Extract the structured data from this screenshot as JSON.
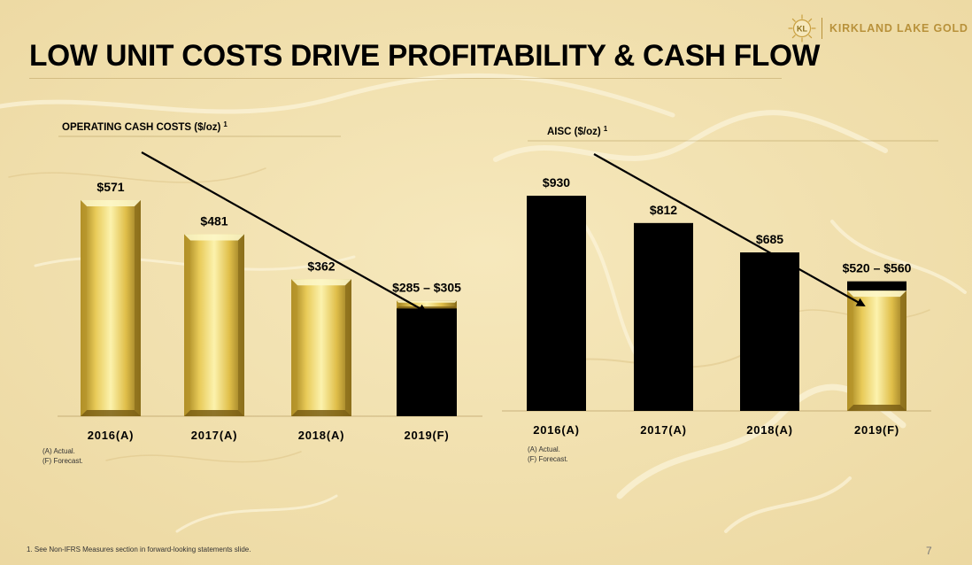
{
  "header": {
    "logo_mark_text": "KL",
    "logo_text": "KIRKLAND LAKE GOLD",
    "title": "LOW UNIT COSTS DRIVE PROFITABILITY & CASH FLOW"
  },
  "colors": {
    "gold_light": "#fbf0a6",
    "gold_mid": "#d9b73e",
    "gold_dark": "#8c6f1c",
    "black_bar": "#000000",
    "brand_gold": "#b8913a"
  },
  "chart_data": [
    {
      "type": "bar",
      "title": "OPERATING CASH COSTS ($/oz)",
      "title_footnote": "1",
      "categories": [
        "2016(A)",
        "2017(A)",
        "2018(A)",
        "2019(F)"
      ],
      "values": [
        571,
        481,
        362,
        305
      ],
      "range_low": [
        null,
        null,
        null,
        285
      ],
      "value_labels": [
        "$571",
        "$481",
        "$362",
        "$285 – $305"
      ],
      "bar_styles": [
        "gold",
        "gold",
        "gold",
        "black-range-over-gold"
      ],
      "ylim": [
        0,
        571
      ],
      "grid": false,
      "trend_arrow": true,
      "legend_notes": [
        "(A)  Actual.",
        "(F)   Forecast."
      ]
    },
    {
      "type": "bar",
      "title": "AISC ($/oz)",
      "title_footnote": "1",
      "categories": [
        "2016(A)",
        "2017(A)",
        "2018(A)",
        "2019(F)"
      ],
      "values": [
        930,
        812,
        685,
        560
      ],
      "range_low": [
        null,
        null,
        null,
        520
      ],
      "value_labels": [
        "$930",
        "$812",
        "$685",
        "$520 – $560"
      ],
      "bar_styles": [
        "black",
        "black",
        "black",
        "black-range-over-gold"
      ],
      "ylim": [
        0,
        930
      ],
      "grid": false,
      "trend_arrow": true,
      "legend_notes": [
        "(A)  Actual.",
        "(F)   Forecast."
      ]
    }
  ],
  "footer": {
    "footnote": "1.    See Non-IFRS Measures section in forward-looking statements slide.",
    "page_number": "7"
  }
}
